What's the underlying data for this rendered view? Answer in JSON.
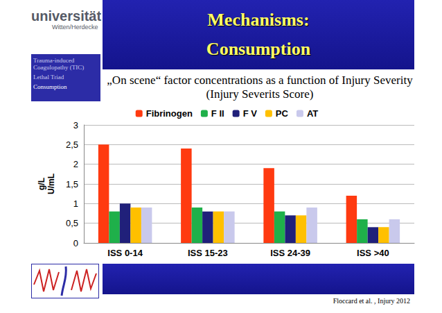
{
  "slide": {
    "logo": {
      "name": "universität",
      "place": "Witten/Herdecke"
    },
    "sidebar": [
      "Trauma-induced Coagulopathy (TIC)",
      "Lethal Triad",
      "Consumption"
    ],
    "title": [
      "Mechanisms:",
      "Consumption"
    ],
    "source": "Floccard et al. , Injury 2012"
  },
  "chart_data": {
    "type": "bar",
    "title": "„On scene“ factor concentrations as a function of Injury Severity (Injury Severits Score)",
    "y_label": "g/L\nU/mL",
    "categories": [
      "ISS 0-14",
      "ISS 15-23",
      "ISS 24-39",
      "ISS >40"
    ],
    "series": [
      {
        "name": "Fibrinogen",
        "color": "#ff3a10",
        "values": [
          2.5,
          2.4,
          1.9,
          1.2
        ]
      },
      {
        "name": "F II",
        "color": "#1fb04a",
        "values": [
          0.8,
          0.9,
          0.8,
          0.6
        ]
      },
      {
        "name": "F V",
        "color": "#20207a",
        "values": [
          1.0,
          0.8,
          0.7,
          0.4
        ]
      },
      {
        "name": "PC",
        "color": "#ffc000",
        "values": [
          0.9,
          0.8,
          0.7,
          0.4
        ]
      },
      {
        "name": "AT",
        "color": "#c9c9ec",
        "values": [
          0.9,
          0.8,
          0.9,
          0.6
        ]
      }
    ],
    "ylim": [
      0,
      3
    ],
    "yticks": [
      0,
      {
        "value": 0.5,
        "label": "0,5"
      },
      1,
      {
        "value": 1.5,
        "label": "1,5"
      },
      2,
      {
        "value": 2.5,
        "label": "2,5"
      },
      3
    ],
    "grid": true,
    "legend": "top"
  }
}
